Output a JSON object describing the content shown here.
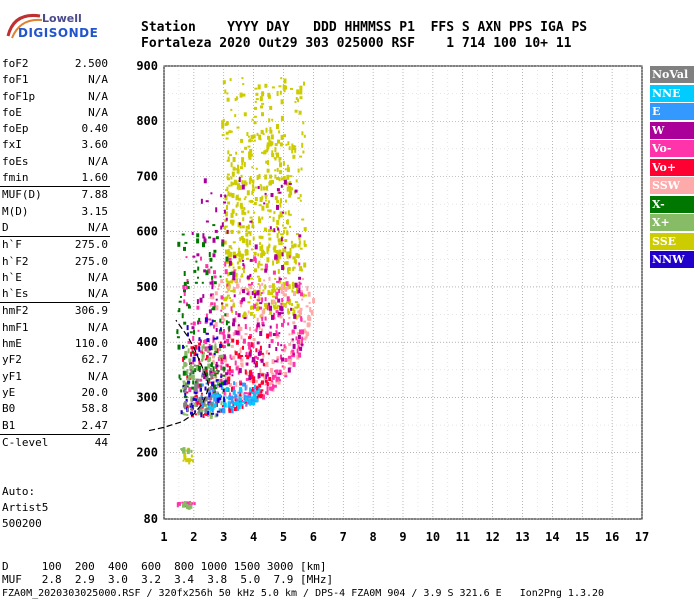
{
  "logo": {
    "brand_top": "Lowell",
    "brand_bottom": "DIGISONDE"
  },
  "header": {
    "line1": "Station    YYYY DAY   DDD HHMMSS P1  FFS S AXN PPS IGA PS",
    "line2": "Fortaleza 2020 Out29 303 025000 RSF    1 714 100 10+ 11"
  },
  "params": [
    {
      "label": "foF2",
      "value": "2.500"
    },
    {
      "label": "foF1",
      "value": "N/A"
    },
    {
      "label": "foF1p",
      "value": "N/A"
    },
    {
      "label": "foE",
      "value": "N/A"
    },
    {
      "label": "foEp",
      "value": "0.40"
    },
    {
      "label": "fxI",
      "value": "3.60"
    },
    {
      "label": "foEs",
      "value": "N/A"
    },
    {
      "label": "fmin",
      "value": "1.60"
    },
    {
      "label": "MUF(D)",
      "value": "7.88",
      "sep": true
    },
    {
      "label": "M(D)",
      "value": "3.15"
    },
    {
      "label": "D",
      "value": "N/A"
    },
    {
      "label": "h`F",
      "value": "275.0",
      "sep": true
    },
    {
      "label": "h`F2",
      "value": "275.0"
    },
    {
      "label": "h`E",
      "value": "N/A"
    },
    {
      "label": "h`Es",
      "value": "N/A"
    },
    {
      "label": "hmF2",
      "value": "306.9",
      "sep": true
    },
    {
      "label": "hmF1",
      "value": "N/A"
    },
    {
      "label": "hmE",
      "value": "110.0"
    },
    {
      "label": "yF2",
      "value": "62.7"
    },
    {
      "label": "yF1",
      "value": "N/A"
    },
    {
      "label": "yE",
      "value": "20.0"
    },
    {
      "label": "B0",
      "value": "58.8"
    },
    {
      "label": "B1",
      "value": "2.47"
    },
    {
      "label": "C-level",
      "value": "44",
      "sep": true
    }
  ],
  "auto": {
    "line1": "Auto:",
    "line2": "Artist5",
    "line3": "500200"
  },
  "legend": [
    {
      "label": "NoVal",
      "color": "#808080"
    },
    {
      "label": "NNE",
      "color": "#00ccff"
    },
    {
      "label": "E",
      "color": "#3399ff"
    },
    {
      "label": "W",
      "color": "#aa0099"
    },
    {
      "label": "Vo-",
      "color": "#ff33aa"
    },
    {
      "label": "Vo+",
      "color": "#ff0033"
    },
    {
      "label": "SSW",
      "color": "#ffaaaa"
    },
    {
      "label": "X-",
      "color": "#007700"
    },
    {
      "label": "X+",
      "color": "#88bb66"
    },
    {
      "label": "SSE",
      "color": "#cccc00"
    },
    {
      "label": "NNW",
      "color": "#2200cc"
    }
  ],
  "bottom": {
    "line1": "D     100  200  400  600  800 1000 1500 3000 [km]",
    "line2": "MUF   2.8  2.9  3.0  3.2  3.4  3.8  5.0  7.9 [MHz]",
    "line3": "FZA0M_2020303025000.RSF / 320fx256h 50 kHz 5.0 km / DPS-4 FZA0M 904 / 3.9 S 321.6 E   Ion2Png 1.3.20"
  },
  "chart_data": {
    "type": "scatter",
    "xlim": [
      1,
      17
    ],
    "ylim": [
      80,
      900
    ],
    "xticks": [
      1,
      2,
      3,
      4,
      5,
      6,
      7,
      8,
      9,
      10,
      11,
      12,
      13,
      14,
      15,
      16,
      17
    ],
    "yticks": [
      80,
      200,
      300,
      400,
      500,
      600,
      700,
      800,
      900
    ],
    "grid": true,
    "trace": [
      {
        "f": 1.6,
        "h": 260
      },
      {
        "f": 2.0,
        "h": 262
      },
      {
        "f": 2.5,
        "h": 266
      },
      {
        "f": 3.0,
        "h": 270
      },
      {
        "f": 3.5,
        "h": 280
      },
      {
        "f": 4.0,
        "h": 293
      },
      {
        "f": 4.5,
        "h": 312
      },
      {
        "f": 5.0,
        "h": 338
      },
      {
        "f": 5.4,
        "h": 370
      },
      {
        "f": 5.8,
        "h": 420
      },
      {
        "f": 6.0,
        "h": 470
      }
    ],
    "clusters": [
      {
        "color": "#cccc00",
        "f": [
          2.9,
          5.7
        ],
        "h": [
          450,
          880
        ],
        "n": 420
      },
      {
        "color": "#cccc00",
        "f": [
          3.0,
          5.2
        ],
        "h": [
          560,
          780
        ],
        "n": 180
      },
      {
        "color": "#ffaaaa",
        "f": [
          2.5,
          6.0
        ],
        "h": [
          300,
          520
        ],
        "n": 240
      },
      {
        "color": "#ff33aa",
        "f": [
          1.6,
          5.6
        ],
        "h": [
          290,
          560
        ],
        "n": 260
      },
      {
        "color": "#aa0099",
        "f": [
          1.8,
          5.6
        ],
        "h": [
          340,
          700
        ],
        "n": 160
      },
      {
        "color": "#ff0033",
        "f": [
          1.6,
          4.5
        ],
        "h": [
          270,
          420
        ],
        "n": 120
      },
      {
        "color": "#007700",
        "f": [
          1.4,
          3.2
        ],
        "h": [
          300,
          620
        ],
        "n": 110
      },
      {
        "color": "#88bb66",
        "f": [
          1.6,
          3.0
        ],
        "h": [
          270,
          400
        ],
        "n": 80
      },
      {
        "color": "#3399ff",
        "f": [
          2.2,
          4.2
        ],
        "h": [
          280,
          330
        ],
        "n": 70
      },
      {
        "color": "#00ccff",
        "f": [
          2.4,
          4.2
        ],
        "h": [
          280,
          320
        ],
        "n": 50
      },
      {
        "color": "#2200cc",
        "f": [
          1.5,
          3.0
        ],
        "h": [
          270,
          450
        ],
        "n": 60
      },
      {
        "color": "#808080",
        "f": [
          1.6,
          2.6
        ],
        "h": [
          280,
          360
        ],
        "n": 40
      },
      {
        "color": "#ff33aa",
        "f": [
          1.4,
          2.0
        ],
        "h": [
          110,
          113
        ],
        "n": 20
      },
      {
        "color": "#88bb66",
        "f": [
          1.6,
          1.9
        ],
        "h": [
          105,
          112
        ],
        "n": 10
      },
      {
        "color": "#cccc00",
        "f": [
          1.6,
          2.0
        ],
        "h": [
          186,
          210
        ],
        "n": 12
      },
      {
        "color": "#88bb66",
        "f": [
          1.5,
          1.9
        ],
        "h": [
          205,
          212
        ],
        "n": 8
      }
    ],
    "profile": [
      {
        "f": 0.5,
        "h": 240
      },
      {
        "f": 1.0,
        "h": 246
      },
      {
        "f": 1.6,
        "h": 256
      },
      {
        "f": 2.0,
        "h": 270
      },
      {
        "f": 2.3,
        "h": 290
      },
      {
        "f": 2.45,
        "h": 310
      },
      {
        "f": 2.5,
        "h": 320
      },
      {
        "f": 2.4,
        "h": 340
      },
      {
        "f": 2.2,
        "h": 365
      },
      {
        "f": 2.0,
        "h": 390
      },
      {
        "f": 1.8,
        "h": 410
      },
      {
        "f": 1.4,
        "h": 440
      }
    ]
  }
}
